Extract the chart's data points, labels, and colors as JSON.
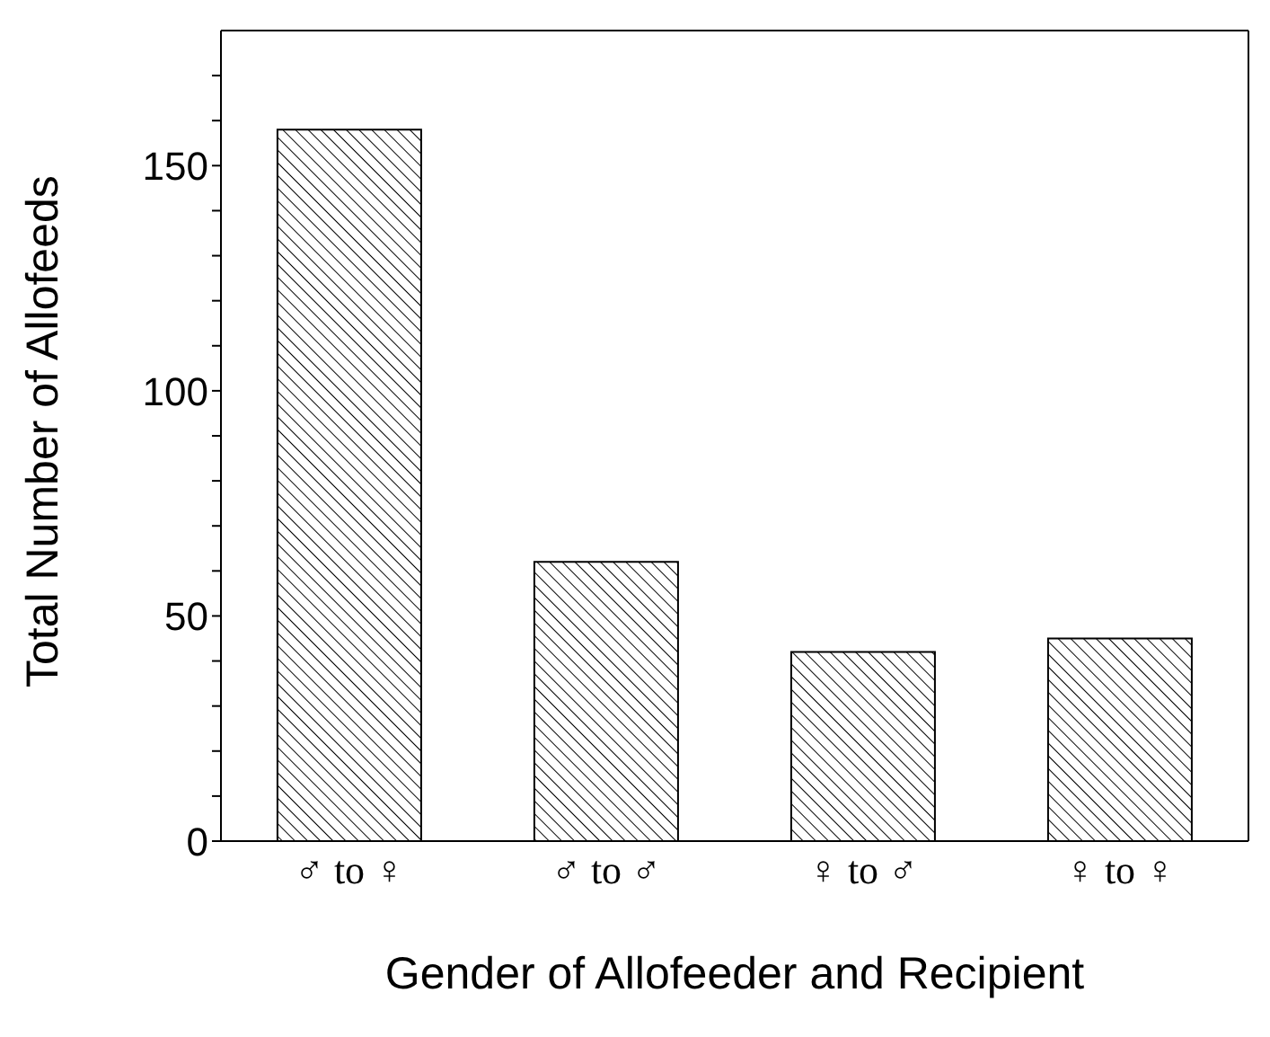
{
  "chart_data": {
    "type": "bar",
    "xlabel": "Gender of Allofeeder and Recipient",
    "ylabel": "Total Number of Allofeeds",
    "categories": [
      "♂ to ♀",
      "♂ to ♂",
      "♀ to ♂",
      "♀ to ♀"
    ],
    "values": [
      158,
      62,
      42,
      45
    ],
    "color": "#000000",
    "ylim": [
      0,
      180
    ],
    "yticks": [
      0,
      {
        "value": 10,
        "label": null
      },
      {
        "value": 20,
        "label": null
      },
      {
        "value": 30,
        "label": null
      },
      {
        "value": 40,
        "label": null
      },
      50,
      {
        "value": 60,
        "label": null
      },
      {
        "value": 70,
        "label": null
      },
      {
        "value": 80,
        "label": null
      },
      {
        "value": 90,
        "label": null
      },
      100,
      {
        "value": 110,
        "label": null
      },
      {
        "value": 120,
        "label": null
      },
      {
        "value": 130,
        "label": null
      },
      {
        "value": 140,
        "label": null
      },
      150,
      {
        "value": 160,
        "label": null
      },
      {
        "value": 170,
        "label": null
      }
    ],
    "grid": false
  }
}
